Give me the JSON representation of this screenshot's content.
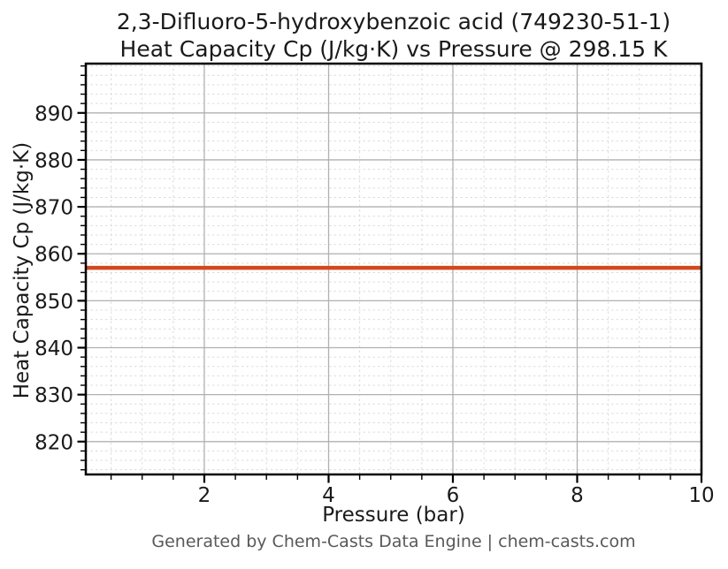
{
  "title": {
    "line1": "2,3-Difluoro-5-hydroxybenzoic acid (749230-51-1)",
    "line2": "Heat Capacity Cp (J/kg·K) vs Pressure @ 298.15 K"
  },
  "footer": {
    "text": "Generated by Chem-Casts Data Engine | chem-casts.com"
  },
  "chart_data": {
    "type": "line",
    "title": "2,3-Difluoro-5-hydroxybenzoic acid (749230-51-1)\nHeat Capacity Cp (J/kg·K) vs Pressure @ 298.15 K",
    "xlabel": "Pressure (bar)",
    "ylabel": "Heat Capacity Cp (J/kg·K)",
    "series": [
      {
        "name": "Heat Capacity Cp",
        "x": [
          0.1,
          1,
          2,
          3,
          4,
          5,
          6,
          7,
          8,
          9,
          10
        ],
        "y": [
          857,
          857,
          857,
          857,
          857,
          857,
          857,
          857,
          857,
          857,
          857
        ]
      }
    ],
    "constant_value": 857,
    "temperature_condition": "298.15 K",
    "xlim": [
      0.093,
      10
    ],
    "ylim": [
      813.0,
      900.5
    ],
    "xticks": [
      2,
      4,
      6,
      8,
      10
    ],
    "yticks": [
      820,
      830,
      840,
      850,
      860,
      870,
      880,
      890
    ],
    "x_minor_step": 0.5,
    "y_minor_step": 2,
    "grid": true,
    "legend": false,
    "colors": {
      "line": "#d1491f",
      "grid_major": "#b0b0b0",
      "grid_minor": "#dcdcdc",
      "axis": "#000000",
      "text": "#1a1a1a",
      "footer_text": "#595959"
    }
  }
}
